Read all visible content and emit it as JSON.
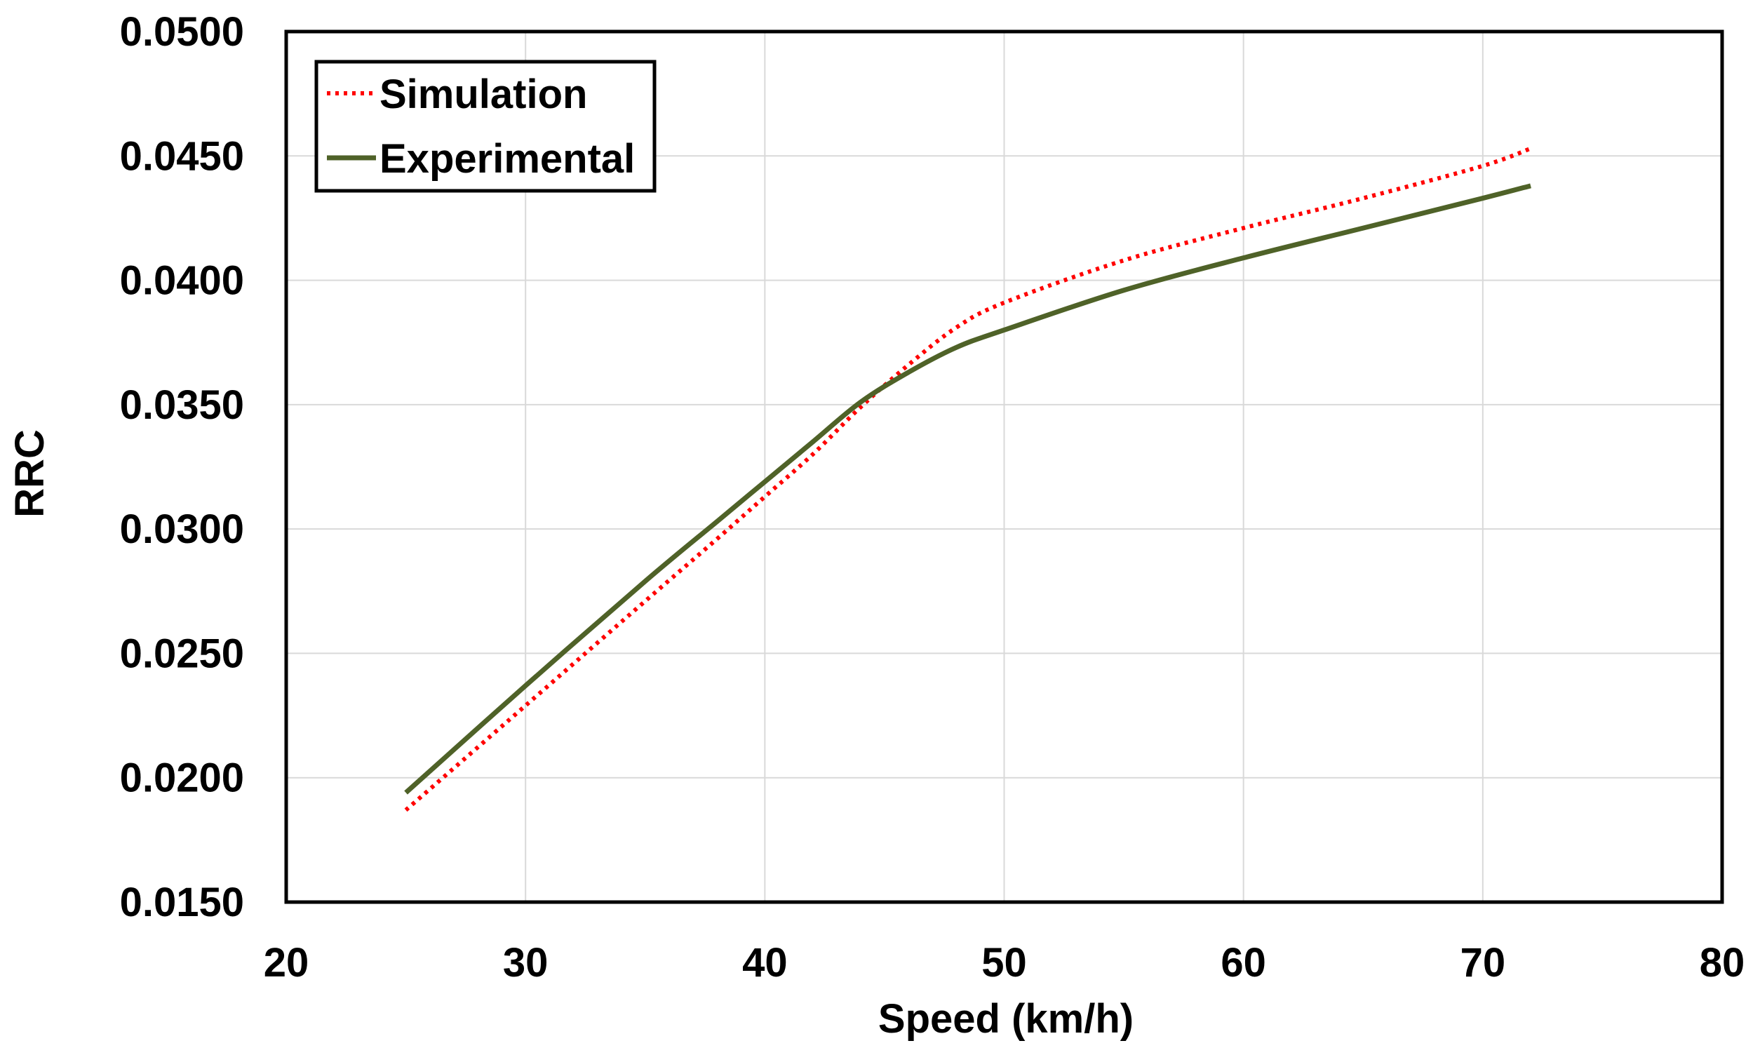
{
  "chart_data": {
    "type": "line",
    "title": "",
    "xlabel": "Speed (km/h)",
    "ylabel": "RRC",
    "xlim": [
      20,
      80
    ],
    "ylim": [
      0.015,
      0.05
    ],
    "x_ticks": [
      20,
      30,
      40,
      50,
      60,
      70,
      80
    ],
    "x_tick_labels": [
      "20",
      "30",
      "40",
      "50",
      "60",
      "70",
      "80"
    ],
    "y_ticks": [
      0.015,
      0.02,
      0.025,
      0.03,
      0.035,
      0.04,
      0.045,
      0.05
    ],
    "y_tick_labels": [
      "0.0150",
      "0.0200",
      "0.0250",
      "0.0300",
      "0.0350",
      "0.0400",
      "0.0450",
      "0.0500"
    ],
    "grid": true,
    "legend_position": "top-left",
    "series": [
      {
        "name": "Simulation",
        "color": "#ff0000",
        "style": "dotted",
        "x": [
          25,
          30,
          35,
          38,
          40,
          42,
          44,
          46,
          48,
          50,
          55,
          60,
          65,
          70,
          72
        ],
        "y": [
          0.0187,
          0.0229,
          0.0271,
          0.0296,
          0.0313,
          0.033,
          0.0349,
          0.0366,
          0.0381,
          0.0391,
          0.0408,
          0.0421,
          0.0433,
          0.0446,
          0.0453
        ]
      },
      {
        "name": "Experimental",
        "color": "#4f6228",
        "style": "solid",
        "x": [
          25,
          30,
          35,
          38,
          40,
          42,
          44,
          46,
          48,
          50,
          55,
          60,
          65,
          70,
          72
        ],
        "y": [
          0.0194,
          0.0237,
          0.0279,
          0.0303,
          0.0319,
          0.0335,
          0.0351,
          0.0363,
          0.0373,
          0.038,
          0.0396,
          0.0409,
          0.0421,
          0.0433,
          0.0438
        ]
      }
    ]
  }
}
